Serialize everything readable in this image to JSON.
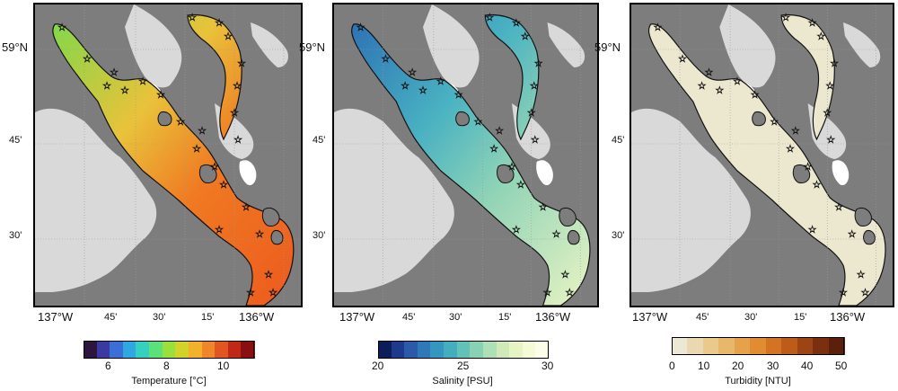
{
  "panels": [
    {
      "id": "temperature",
      "lat_labels": [
        "59°N",
        "45'",
        "30'"
      ],
      "lon_labels": [
        "137°W",
        "45'",
        "30'",
        "15'",
        "136°W"
      ],
      "colorbar": {
        "label": "Temperature [°C]",
        "ticks": [
          "6",
          "8",
          "10"
        ],
        "colors": [
          "#2c1640",
          "#3a3aa0",
          "#3b6fd6",
          "#2fa7e0",
          "#35d0c0",
          "#5be07a",
          "#9ae03c",
          "#d2d229",
          "#f1b12a",
          "#f0862a",
          "#e05520",
          "#c02818",
          "#8a0f10"
        ]
      },
      "water_fill": [
        "#7fd84a",
        "#e9c23a",
        "#f07a22",
        "#ec5a1e"
      ]
    },
    {
      "id": "salinity",
      "lat_labels": [
        "59°N",
        "45'",
        "30'"
      ],
      "lon_labels": [
        "137°W",
        "45'",
        "30'",
        "15'",
        "136°W"
      ],
      "colorbar": {
        "label": "Salinity [PSU]",
        "ticks": [
          "20",
          "25",
          "30"
        ],
        "colors": [
          "#0b1e5a",
          "#1e3a8c",
          "#2a5aa8",
          "#2f79b8",
          "#3596c0",
          "#45aebe",
          "#62c2b8",
          "#88d1b4",
          "#aee0b6",
          "#cfeab8",
          "#e6f3c2",
          "#f4f9d6",
          "#fbfde8"
        ]
      },
      "water_fill": [
        "#2c70b4",
        "#49b2c2",
        "#8fd3b6",
        "#e9f4c4"
      ]
    },
    {
      "id": "turbidity",
      "lat_labels": [
        "59°N",
        "45'",
        "30'"
      ],
      "lon_labels": [
        "137°W",
        "45'",
        "30'",
        "15'",
        "136°W"
      ],
      "colorbar": {
        "label": "Turbidity [NTU]",
        "ticks": [
          "0",
          "10",
          "20",
          "30",
          "40",
          "50"
        ],
        "colors": [
          "#ede8d4",
          "#ead9b0",
          "#e9ca8c",
          "#e8b86a",
          "#e6a24a",
          "#e08c30",
          "#d27422",
          "#bc5c18",
          "#9c4414",
          "#7a300f",
          "#5a200b"
        ]
      },
      "water_fill": [
        "#ece7cf",
        "#ece7cf",
        "#ece7cf",
        "#ece7cf"
      ]
    }
  ]
}
